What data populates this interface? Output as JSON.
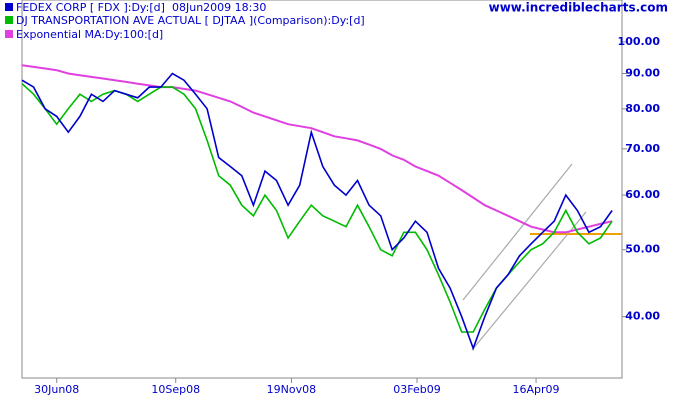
{
  "chart_data": {
    "type": "line",
    "log_scale": true,
    "source": "www.incrediblecharts.com",
    "timestamp": "08Jun2009 18:30",
    "x": [
      "2008-06-09",
      "2008-06-16",
      "2008-06-23",
      "2008-06-30",
      "2008-07-07",
      "2008-07-14",
      "2008-07-21",
      "2008-07-28",
      "2008-08-04",
      "2008-08-11",
      "2008-08-18",
      "2008-08-25",
      "2008-09-01",
      "2008-09-08",
      "2008-09-15",
      "2008-09-22",
      "2008-09-29",
      "2008-10-06",
      "2008-10-13",
      "2008-10-20",
      "2008-10-27",
      "2008-11-03",
      "2008-11-10",
      "2008-11-17",
      "2008-11-24",
      "2008-12-01",
      "2008-12-08",
      "2008-12-15",
      "2008-12-22",
      "2008-12-29",
      "2009-01-05",
      "2009-01-12",
      "2009-01-19",
      "2009-01-26",
      "2009-02-02",
      "2009-02-09",
      "2009-02-16",
      "2009-02-23",
      "2009-03-02",
      "2009-03-09",
      "2009-03-16",
      "2009-03-23",
      "2009-03-30",
      "2009-04-06",
      "2009-04-13",
      "2009-04-20",
      "2009-04-27",
      "2009-05-04",
      "2009-05-11",
      "2009-05-18",
      "2009-05-25",
      "2009-06-01"
    ],
    "series": [
      {
        "name": "FEDEX CORP [ FDX ]:Dy:[d]",
        "color": "#0000cc",
        "values": [
          88,
          86,
          80,
          78,
          74,
          78,
          84,
          82,
          85,
          84,
          83,
          86,
          86,
          90,
          88,
          84,
          80,
          68,
          66,
          64,
          58,
          65,
          63,
          58,
          62,
          74,
          66,
          62,
          60,
          63,
          58,
          56,
          50,
          52,
          55,
          53,
          47,
          44,
          40,
          36,
          40,
          44,
          46,
          49,
          51,
          53,
          55,
          60,
          57,
          53,
          54,
          57
        ]
      },
      {
        "name": "DJ TRANSPORTATION AVE ACTUAL [ DJTAA ](Comparison):Dy:[d]",
        "color": "#00bb00",
        "values": [
          87,
          84,
          80,
          76,
          80,
          84,
          82,
          84,
          85,
          84,
          82,
          84,
          86,
          86,
          84,
          80,
          72,
          64,
          62,
          58,
          56,
          60,
          57,
          52,
          55,
          58,
          56,
          55,
          54,
          58,
          54,
          50,
          49,
          53,
          53,
          50,
          46,
          42,
          38,
          38,
          41,
          44,
          46,
          48,
          50,
          51,
          53,
          57,
          53,
          51,
          52,
          55
        ]
      },
      {
        "name": "Exponential MA:Dy:100:[d]",
        "color": "#e040e0",
        "values": [
          92.5,
          92,
          91.5,
          91,
          90,
          89.5,
          89,
          88.5,
          88,
          87.5,
          87,
          86.5,
          86,
          86,
          85.5,
          85,
          84,
          83,
          82,
          80.5,
          79,
          78,
          77,
          76,
          75.5,
          75,
          74,
          73,
          72.5,
          72,
          71,
          70,
          68.5,
          67.5,
          66,
          65,
          64,
          62.5,
          61,
          59.5,
          58,
          57,
          56,
          55,
          54,
          53.5,
          53,
          53,
          53.5,
          54,
          54.5,
          55
        ]
      }
    ],
    "xlim": [
      "2008-06-09",
      "2009-06-07"
    ],
    "xticks": [
      {
        "value": "2008-06-30",
        "label": "30Jun08"
      },
      {
        "value": "2008-09-10",
        "label": "10Sep08"
      },
      {
        "value": "2008-11-19",
        "label": "19Nov08"
      },
      {
        "value": "2009-02-03",
        "label": "03Feb09"
      },
      {
        "value": "2009-04-16",
        "label": "16Apr09"
      }
    ],
    "ylim": [
      32.6,
      115
    ],
    "yticks": [
      {
        "value": 40,
        "label": "40.00"
      },
      {
        "value": 50,
        "label": "50.00"
      },
      {
        "value": 60,
        "label": "60.00"
      },
      {
        "value": 70,
        "label": "70.00"
      },
      {
        "value": 80,
        "label": "80.00"
      },
      {
        "value": 90,
        "label": "90.00"
      },
      {
        "value": 100,
        "label": "100.00"
      }
    ]
  }
}
